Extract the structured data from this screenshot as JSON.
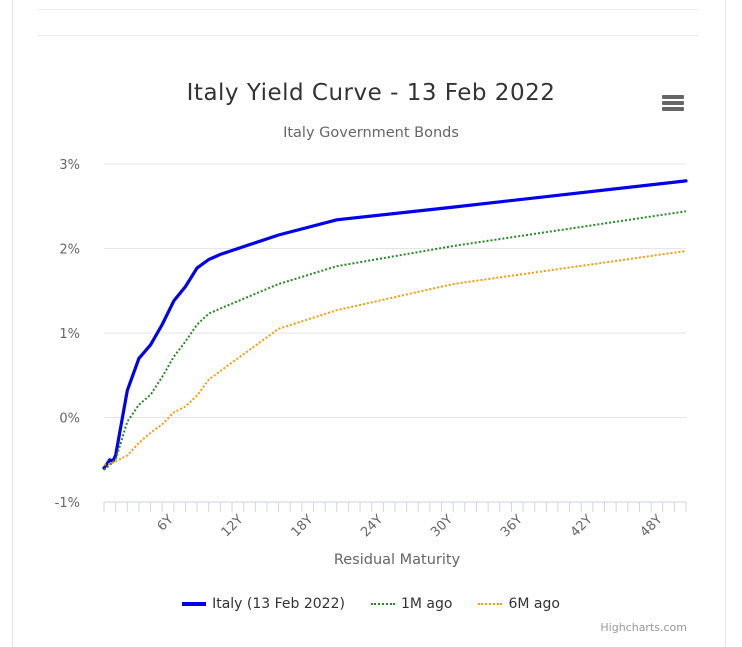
{
  "chart_data": {
    "type": "line",
    "title": "Italy Yield Curve - 13 Feb 2022",
    "subtitle": "Italy Government Bonds",
    "xlabel": "Residual Maturity",
    "ylabel": "",
    "x_unit": "years",
    "xlim": [
      0,
      50
    ],
    "ylim": [
      -1,
      3
    ],
    "yticks": [
      -1,
      0,
      1,
      2,
      3
    ],
    "ytick_labels": [
      "-1%",
      "0%",
      "1%",
      "2%",
      "3%"
    ],
    "xticks": [
      6,
      12,
      18,
      24,
      30,
      36,
      42,
      48
    ],
    "xtick_labels": [
      "6Y",
      "12Y",
      "18Y",
      "24Y",
      "30Y",
      "36Y",
      "42Y",
      "48Y"
    ],
    "grid": true,
    "legend_position": "bottom-center",
    "series": [
      {
        "name": "Italy (13 Feb 2022)",
        "color": "#0000ee",
        "dash": "solid",
        "x": [
          0,
          0.25,
          0.5,
          0.75,
          1,
          2,
          3,
          4,
          5,
          6,
          7,
          8,
          9,
          10,
          15,
          20,
          30,
          50
        ],
        "y": [
          -0.6,
          -0.55,
          -0.5,
          -0.52,
          -0.45,
          0.32,
          0.7,
          0.86,
          1.1,
          1.38,
          1.55,
          1.77,
          1.87,
          1.93,
          2.16,
          2.34,
          2.49,
          2.8
        ]
      },
      {
        "name": "1M ago",
        "color": "#228b22",
        "dash": "dotted",
        "x": [
          0,
          0.5,
          1,
          2,
          3,
          4,
          5,
          6,
          7,
          8,
          9,
          10,
          15,
          20,
          30,
          50
        ],
        "y": [
          -0.62,
          -0.56,
          -0.5,
          -0.05,
          0.15,
          0.27,
          0.48,
          0.72,
          0.9,
          1.1,
          1.23,
          1.29,
          1.58,
          1.79,
          2.03,
          2.44
        ]
      },
      {
        "name": "6M ago",
        "color": "#ff9900",
        "dash": "dotted",
        "x": [
          0,
          0.5,
          1,
          2,
          3,
          4,
          5,
          6,
          7,
          8,
          9,
          10,
          15,
          20,
          30,
          50
        ],
        "y": [
          -0.56,
          -0.55,
          -0.52,
          -0.45,
          -0.3,
          -0.18,
          -0.08,
          0.06,
          0.13,
          0.26,
          0.45,
          0.55,
          1.05,
          1.27,
          1.58,
          1.97
        ]
      }
    ]
  },
  "header": {
    "menu_icon": "hamburger-menu-icon"
  },
  "credits": "Highcharts.com"
}
